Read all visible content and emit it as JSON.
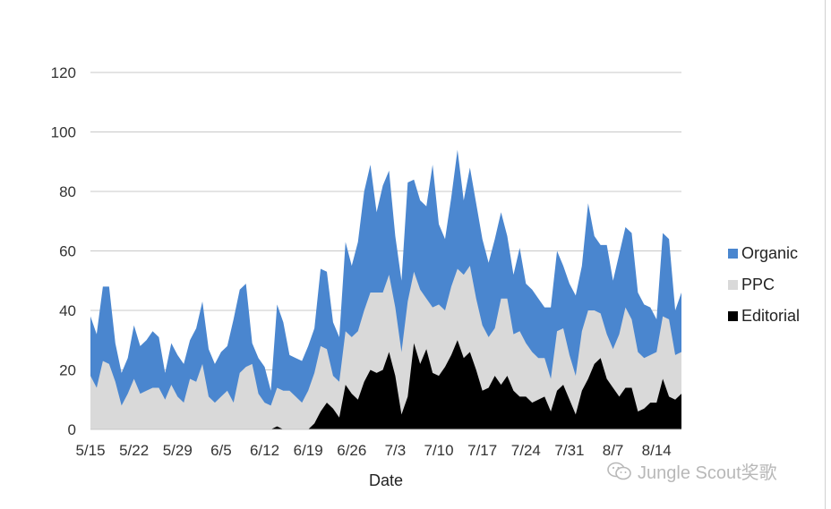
{
  "chart_data": {
    "type": "area",
    "stacked": true,
    "xlabel": "Date",
    "ylabel": "",
    "title": "",
    "ylim": [
      0,
      120
    ],
    "yticks": [
      0,
      20,
      40,
      60,
      80,
      100,
      120
    ],
    "x_tick_labels": [
      "5/15",
      "5/22",
      "5/29",
      "6/5",
      "6/12",
      "6/19",
      "6/26",
      "7/3",
      "7/10",
      "7/17",
      "7/24",
      "7/31",
      "8/7",
      "8/14"
    ],
    "x_tick_day_index": [
      0,
      7,
      14,
      21,
      28,
      35,
      42,
      49,
      56,
      63,
      70,
      77,
      84,
      91
    ],
    "x_max_index": 95,
    "grid": true,
    "legend_position": "right",
    "series": [
      {
        "name": "Organic",
        "color": "#4a86cf",
        "values": [
          20,
          18,
          25,
          26,
          13,
          11,
          12,
          18,
          16,
          17,
          19,
          17,
          9,
          14,
          14,
          13,
          13,
          18,
          21,
          16,
          13,
          15,
          15,
          28,
          28,
          28,
          7,
          12,
          12,
          5,
          28,
          23,
          12,
          13,
          14,
          15,
          15,
          26,
          26,
          18,
          15,
          30,
          24,
          30,
          40,
          43,
          27,
          36,
          35,
          24,
          24,
          40,
          31,
          30,
          31,
          48,
          27,
          24,
          30,
          40,
          25,
          33,
          32,
          29,
          25,
          30,
          29,
          21,
          20,
          28,
          20,
          21,
          20,
          17,
          24,
          27,
          21,
          24,
          27,
          22,
          36,
          25,
          23,
          30,
          23,
          27,
          27,
          29,
          20,
          18,
          16,
          11,
          28,
          27,
          15,
          20
        ]
      },
      {
        "name": "PPC",
        "color": "#d9d9d9",
        "values": [
          18,
          14,
          23,
          22,
          16,
          8,
          12,
          17,
          12,
          13,
          14,
          14,
          10,
          15,
          11,
          9,
          17,
          16,
          22,
          11,
          9,
          11,
          13,
          9,
          19,
          21,
          22,
          12,
          9,
          8,
          13,
          13,
          13,
          11,
          9,
          13,
          17,
          22,
          18,
          11,
          12,
          18,
          19,
          23,
          24,
          26,
          27,
          26,
          26,
          23,
          21,
          32,
          24,
          25,
          17,
          22,
          24,
          19,
          23,
          24,
          28,
          29,
          24,
          22,
          17,
          16,
          29,
          26,
          19,
          22,
          18,
          17,
          14,
          13,
          11,
          20,
          19,
          15,
          13,
          20,
          23,
          18,
          15,
          15,
          13,
          21,
          27,
          23,
          20,
          17,
          16,
          17,
          21,
          26,
          15,
          14
        ]
      },
      {
        "name": "Editorial",
        "color": "#000000",
        "values": [
          0,
          0,
          0,
          0,
          0,
          0,
          0,
          0,
          0,
          0,
          0,
          0,
          0,
          0,
          0,
          0,
          0,
          0,
          0,
          0,
          0,
          0,
          0,
          0,
          0,
          0,
          0,
          0,
          0,
          0,
          1,
          0,
          0,
          0,
          0,
          0,
          2,
          6,
          9,
          7,
          4,
          15,
          12,
          10,
          16,
          20,
          19,
          20,
          26,
          18,
          5,
          11,
          29,
          22,
          27,
          19,
          18,
          21,
          25,
          30,
          24,
          26,
          20,
          13,
          14,
          18,
          15,
          18,
          13,
          11,
          11,
          9,
          10,
          11,
          6,
          13,
          15,
          10,
          5,
          13,
          17,
          22,
          24,
          17,
          14,
          11,
          14,
          14,
          6,
          7,
          9,
          9,
          17,
          11,
          10,
          12
        ]
      }
    ]
  },
  "watermark": {
    "icon": "wechat-icon",
    "text": "Jungle Scout奖歌"
  }
}
